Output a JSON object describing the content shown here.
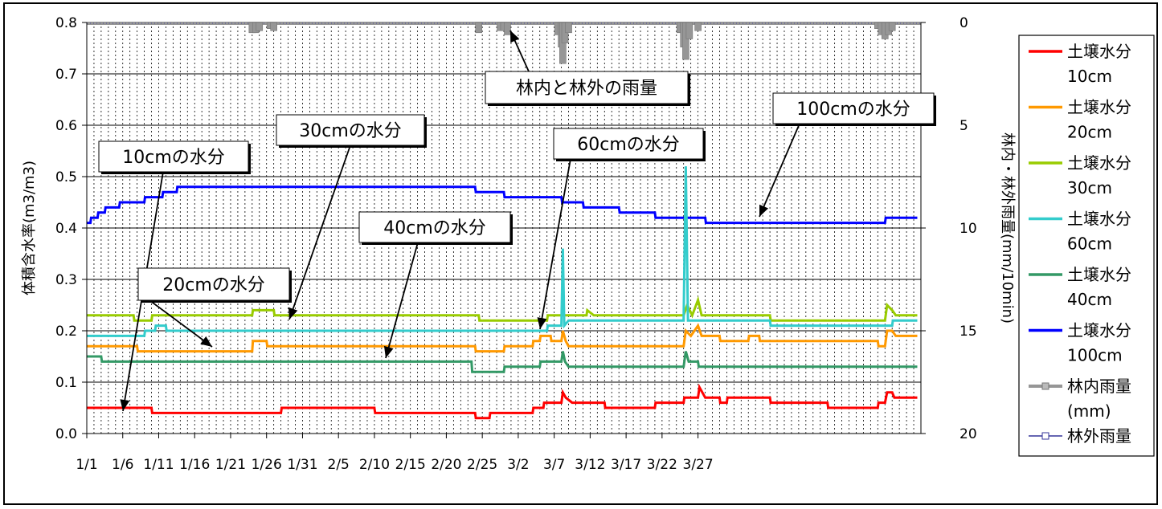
{
  "chart_data": {
    "type": "line",
    "ylabel_left": "体積含水率(m3/m3)",
    "ylabel_right": "林内・林外雨量(mm/10min)",
    "y_left_range": [
      0.0,
      0.8
    ],
    "y_left_ticks": [
      "0.0",
      "0.1",
      "0.2",
      "0.3",
      "0.4",
      "0.5",
      "0.6",
      "0.7",
      "0.8"
    ],
    "y_right_range": [
      20,
      0
    ],
    "y_right_ticks": [
      "0",
      "5",
      "10",
      "15",
      "20"
    ],
    "x_ticks": [
      "1/1",
      "1/6",
      "1/11",
      "1/16",
      "1/21",
      "1/26",
      "1/31",
      "2/5",
      "2/10",
      "2/15",
      "2/20",
      "2/25",
      "3/2",
      "3/7",
      "3/12",
      "3/17",
      "3/22",
      "3/27"
    ],
    "grid": "vertical dashed daily, horizontal solid",
    "legend_position": "right",
    "legend": [
      {
        "line1": "土壌水分",
        "line2": "10cm",
        "color": "#ff0000"
      },
      {
        "line1": "土壌水分",
        "line2": "20cm",
        "color": "#ff9900"
      },
      {
        "line1": "土壌水分",
        "line2": "30cm",
        "color": "#99cc00"
      },
      {
        "line1": "土壌水分",
        "line2": "60cm",
        "color": "#33cccc"
      },
      {
        "line1": "土壌水分",
        "line2": "40cm",
        "color": "#339966"
      },
      {
        "line1": "土壌水分",
        "line2": "100cm",
        "color": "#0000ff"
      },
      {
        "line1": "林内雨量",
        "line2": "(mm)",
        "color": "#969696"
      },
      {
        "line1": "林外雨量",
        "line2": "",
        "color": "#333399"
      }
    ],
    "annotations": [
      "10cmの水分",
      "20cmの水分",
      "30cmの水分",
      "40cmの水分",
      "60cmの水分",
      "100cmの水分",
      "林内と林外の雨量"
    ],
    "series": [
      {
        "key": "s100",
        "color": "#0000ff",
        "values": [
          [
            0,
            0.41
          ],
          [
            0.5,
            0.41
          ],
          [
            0.6,
            0.42
          ],
          [
            1.5,
            0.42
          ],
          [
            1.6,
            0.43
          ],
          [
            2.5,
            0.43
          ],
          [
            2.6,
            0.44
          ],
          [
            4.5,
            0.44
          ],
          [
            4.6,
            0.45
          ],
          [
            8,
            0.45
          ],
          [
            8.1,
            0.46
          ],
          [
            10.5,
            0.46
          ],
          [
            10.6,
            0.47
          ],
          [
            12.5,
            0.47
          ],
          [
            12.6,
            0.48
          ],
          [
            54,
            0.48
          ],
          [
            54.1,
            0.47
          ],
          [
            58,
            0.47
          ],
          [
            58.1,
            0.46
          ],
          [
            66,
            0.46
          ],
          [
            66.1,
            0.45
          ],
          [
            69,
            0.45
          ],
          [
            69.1,
            0.44
          ],
          [
            74,
            0.44
          ],
          [
            74.1,
            0.43
          ],
          [
            79,
            0.43
          ],
          [
            79.1,
            0.42
          ],
          [
            86,
            0.42
          ],
          [
            86.1,
            0.41
          ],
          [
            111,
            0.41
          ],
          [
            111.1,
            0.42
          ],
          [
            115.5,
            0.42
          ]
        ]
      },
      {
        "key": "s30",
        "color": "#99cc00",
        "values": [
          [
            0,
            0.23
          ],
          [
            6.5,
            0.23
          ],
          [
            6.6,
            0.22
          ],
          [
            9,
            0.22
          ],
          [
            9.1,
            0.23
          ],
          [
            23,
            0.23
          ],
          [
            23.1,
            0.24
          ],
          [
            26,
            0.24
          ],
          [
            26.1,
            0.23
          ],
          [
            54.5,
            0.23
          ],
          [
            54.6,
            0.22
          ],
          [
            64,
            0.22
          ],
          [
            64.1,
            0.23
          ],
          [
            69.5,
            0.23
          ],
          [
            69.6,
            0.24
          ],
          [
            70.5,
            0.23
          ],
          [
            83,
            0.23
          ],
          [
            83.5,
            0.25
          ],
          [
            84.2,
            0.23
          ],
          [
            85,
            0.26
          ],
          [
            85.5,
            0.23
          ],
          [
            95,
            0.23
          ],
          [
            95.1,
            0.22
          ],
          [
            111,
            0.22
          ],
          [
            111.3,
            0.25
          ],
          [
            112,
            0.24
          ],
          [
            112.5,
            0.23
          ],
          [
            115.5,
            0.23
          ]
        ]
      },
      {
        "key": "s60",
        "color": "#33cccc",
        "values": [
          [
            0,
            0.19
          ],
          [
            8,
            0.19
          ],
          [
            8.1,
            0.2
          ],
          [
            9.5,
            0.2
          ],
          [
            9.6,
            0.21
          ],
          [
            11,
            0.21
          ],
          [
            11.1,
            0.2
          ],
          [
            63,
            0.2
          ],
          [
            64,
            0.2
          ],
          [
            64.1,
            0.21
          ],
          [
            66,
            0.21
          ],
          [
            66.2,
            0.36
          ],
          [
            66.4,
            0.21
          ],
          [
            67,
            0.22
          ],
          [
            83,
            0.22
          ],
          [
            83.3,
            0.52
          ],
          [
            83.6,
            0.22
          ],
          [
            95,
            0.22
          ],
          [
            95.1,
            0.21
          ],
          [
            112,
            0.21
          ],
          [
            112.1,
            0.22
          ],
          [
            115.5,
            0.22
          ]
        ]
      },
      {
        "key": "s20",
        "color": "#ff9900",
        "values": [
          [
            0,
            0.17
          ],
          [
            7,
            0.17
          ],
          [
            7.1,
            0.16
          ],
          [
            23,
            0.16
          ],
          [
            23.1,
            0.18
          ],
          [
            25,
            0.18
          ],
          [
            25.1,
            0.17
          ],
          [
            54,
            0.17
          ],
          [
            54.1,
            0.16
          ],
          [
            58,
            0.16
          ],
          [
            58.1,
            0.17
          ],
          [
            62,
            0.17
          ],
          [
            62.1,
            0.18
          ],
          [
            63,
            0.18
          ],
          [
            63.1,
            0.19
          ],
          [
            64.5,
            0.19
          ],
          [
            64.6,
            0.18
          ],
          [
            66,
            0.18
          ],
          [
            66.2,
            0.2
          ],
          [
            66.6,
            0.18
          ],
          [
            67,
            0.17
          ],
          [
            83,
            0.17
          ],
          [
            83.3,
            0.2
          ],
          [
            84,
            0.19
          ],
          [
            85,
            0.21
          ],
          [
            85.5,
            0.19
          ],
          [
            88,
            0.19
          ],
          [
            88.1,
            0.18
          ],
          [
            92,
            0.18
          ],
          [
            92.1,
            0.19
          ],
          [
            93.5,
            0.19
          ],
          [
            93.6,
            0.18
          ],
          [
            110,
            0.18
          ],
          [
            110.1,
            0.17
          ],
          [
            111,
            0.17
          ],
          [
            111.3,
            0.2
          ],
          [
            112,
            0.2
          ],
          [
            112.5,
            0.19
          ],
          [
            115.5,
            0.19
          ]
        ]
      },
      {
        "key": "s40",
        "color": "#339966",
        "values": [
          [
            0,
            0.15
          ],
          [
            2,
            0.15
          ],
          [
            2.1,
            0.14
          ],
          [
            53.5,
            0.14
          ],
          [
            53.6,
            0.12
          ],
          [
            58,
            0.12
          ],
          [
            58.1,
            0.13
          ],
          [
            63,
            0.13
          ],
          [
            63.1,
            0.14
          ],
          [
            66,
            0.14
          ],
          [
            66.2,
            0.16
          ],
          [
            66.5,
            0.14
          ],
          [
            67,
            0.13
          ],
          [
            83,
            0.13
          ],
          [
            83.3,
            0.16
          ],
          [
            83.7,
            0.14
          ],
          [
            85,
            0.14
          ],
          [
            85.1,
            0.13
          ],
          [
            115.5,
            0.13
          ]
        ]
      },
      {
        "key": "s10",
        "color": "#ff0000",
        "values": [
          [
            0,
            0.05
          ],
          [
            9,
            0.05
          ],
          [
            9.1,
            0.04
          ],
          [
            27,
            0.04
          ],
          [
            27.1,
            0.05
          ],
          [
            40,
            0.05
          ],
          [
            40.1,
            0.04
          ],
          [
            54,
            0.04
          ],
          [
            54.1,
            0.03
          ],
          [
            56,
            0.03
          ],
          [
            56.1,
            0.04
          ],
          [
            62,
            0.04
          ],
          [
            62.1,
            0.05
          ],
          [
            63.5,
            0.05
          ],
          [
            63.6,
            0.06
          ],
          [
            66,
            0.06
          ],
          [
            66.2,
            0.08
          ],
          [
            66.6,
            0.07
          ],
          [
            67.5,
            0.06
          ],
          [
            72,
            0.06
          ],
          [
            72.1,
            0.05
          ],
          [
            79,
            0.05
          ],
          [
            79.1,
            0.06
          ],
          [
            83,
            0.06
          ],
          [
            83.1,
            0.07
          ],
          [
            85,
            0.07
          ],
          [
            85.2,
            0.09
          ],
          [
            85.6,
            0.08
          ],
          [
            86,
            0.07
          ],
          [
            88,
            0.07
          ],
          [
            88.1,
            0.06
          ],
          [
            89,
            0.06
          ],
          [
            89.1,
            0.07
          ],
          [
            95,
            0.07
          ],
          [
            95.1,
            0.06
          ],
          [
            103,
            0.06
          ],
          [
            103.1,
            0.05
          ],
          [
            110,
            0.05
          ],
          [
            110.1,
            0.06
          ],
          [
            111,
            0.06
          ],
          [
            111.3,
            0.08
          ],
          [
            112,
            0.08
          ],
          [
            112.3,
            0.07
          ],
          [
            115.5,
            0.07
          ]
        ]
      }
    ],
    "rain_events": [
      [
        23,
        0.5
      ],
      [
        23.5,
        0.5
      ],
      [
        24,
        0.4
      ],
      [
        25.5,
        0.3
      ],
      [
        26,
        0.4
      ],
      [
        54.5,
        0.5
      ],
      [
        57.5,
        0.4
      ],
      [
        58,
        0.4
      ],
      [
        58.5,
        0.6
      ],
      [
        65.5,
        0.6
      ],
      [
        66,
        1.2
      ],
      [
        66.2,
        2.0
      ],
      [
        66.5,
        1.0
      ],
      [
        67,
        0.5
      ],
      [
        82.5,
        0.5
      ],
      [
        83,
        1.2
      ],
      [
        83.3,
        1.8
      ],
      [
        83.8,
        0.8
      ],
      [
        85,
        0.4
      ],
      [
        110,
        0.3
      ],
      [
        110.5,
        0.6
      ],
      [
        111,
        0.8
      ],
      [
        111.5,
        0.6
      ],
      [
        112,
        0.4
      ]
    ]
  },
  "callouts": [
    {
      "text": "10cmの水分"
    },
    {
      "text": "20cmの水分"
    },
    {
      "text": "30cmの水分"
    },
    {
      "text": "40cmの水分"
    },
    {
      "text": "60cmの水分"
    },
    {
      "text": "100cmの水分"
    },
    {
      "text": "林内と林外の雨量"
    }
  ]
}
